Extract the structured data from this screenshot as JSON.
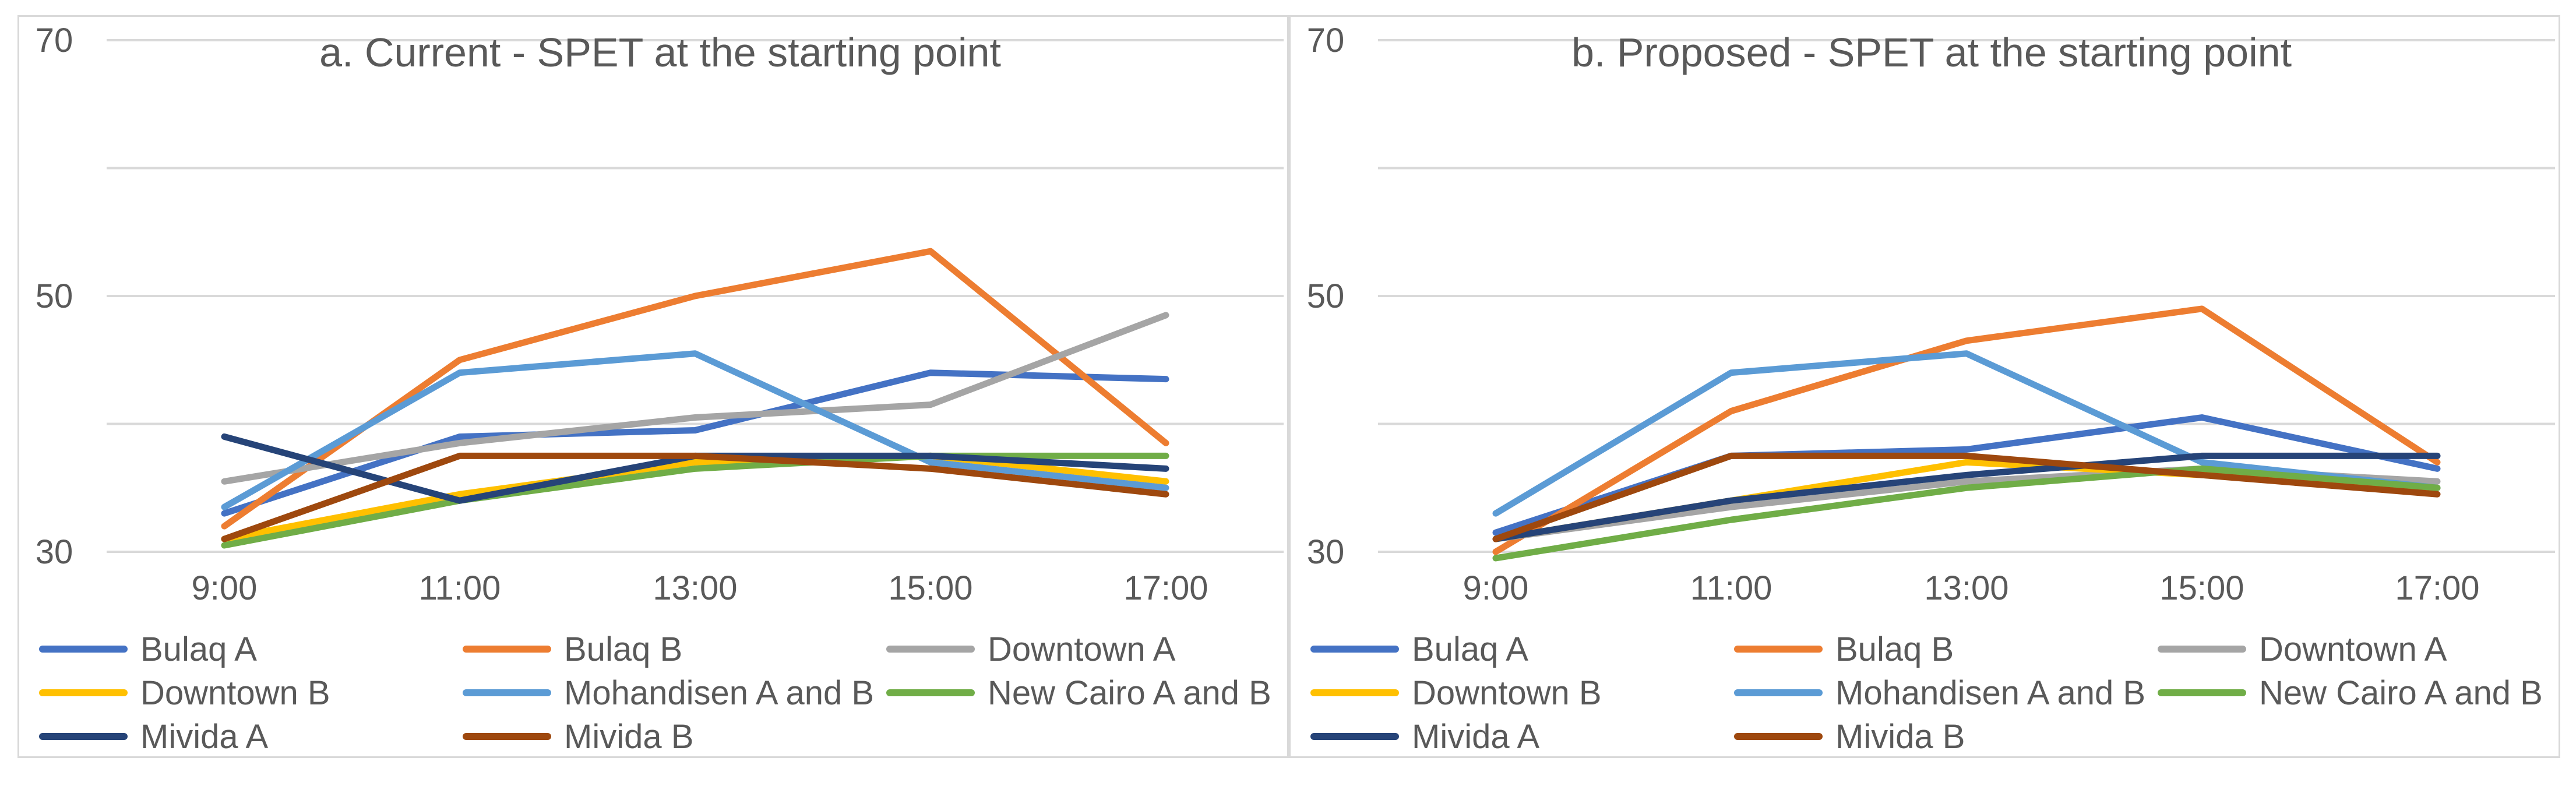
{
  "chart_data": [
    {
      "type": "line",
      "title": "a. Current - SPET at the starting point",
      "xlabel": "",
      "ylabel": "",
      "categories": [
        "9:00",
        "11:00",
        "13:00",
        "15:00",
        "17:00"
      ],
      "yticks": [
        30,
        50,
        70
      ],
      "ylim": [
        30,
        70
      ],
      "grid": true,
      "legend": "bottom",
      "series": [
        {
          "name": "Bulaq A",
          "color": "#4472c4",
          "values": [
            33,
            39,
            39.5,
            44,
            43.5
          ]
        },
        {
          "name": "Bulaq B",
          "color": "#ed7d31",
          "values": [
            32,
            45,
            50,
            53.5,
            38.5
          ]
        },
        {
          "name": "Downtown A",
          "color": "#a5a5a5",
          "values": [
            35.5,
            38.5,
            40.5,
            41.5,
            48.5
          ]
        },
        {
          "name": "Downtown B",
          "color": "#ffc000",
          "values": [
            31,
            34.5,
            37,
            37.5,
            35.5
          ]
        },
        {
          "name": "Mohandisen A and B",
          "color": "#5b9bd5",
          "values": [
            33.5,
            44,
            45.5,
            37,
            35
          ]
        },
        {
          "name": "New Cairo A and B",
          "color": "#70ad47",
          "values": [
            30.5,
            34,
            36.5,
            37.5,
            37.5
          ]
        },
        {
          "name": "Mivida A",
          "color": "#264478",
          "values": [
            39,
            34,
            37.5,
            37.5,
            36.5
          ]
        },
        {
          "name": "Mivida B",
          "color": "#9e480e",
          "values": [
            31,
            37.5,
            37.5,
            36.5,
            34.5
          ]
        }
      ]
    },
    {
      "type": "line",
      "title": "b. Proposed - SPET at the starting point",
      "xlabel": "",
      "ylabel": "",
      "categories": [
        "9:00",
        "11:00",
        "13:00",
        "15:00",
        "17:00"
      ],
      "yticks": [
        30,
        50,
        70
      ],
      "ylim": [
        30,
        70
      ],
      "grid": true,
      "legend": "bottom",
      "series": [
        {
          "name": "Bulaq A",
          "color": "#4472c4",
          "values": [
            31.5,
            37.5,
            38,
            40.5,
            36.5
          ]
        },
        {
          "name": "Bulaq B",
          "color": "#ed7d31",
          "values": [
            30,
            41,
            46.5,
            49,
            37
          ]
        },
        {
          "name": "Downtown A",
          "color": "#a5a5a5",
          "values": [
            31,
            33.5,
            35.5,
            36.5,
            35.5
          ]
        },
        {
          "name": "Downtown B",
          "color": "#ffc000",
          "values": [
            31,
            34,
            37,
            36,
            35
          ]
        },
        {
          "name": "Mohandisen A and B",
          "color": "#5b9bd5",
          "values": [
            33,
            44,
            45.5,
            37,
            35
          ]
        },
        {
          "name": "New Cairo A and B",
          "color": "#70ad47",
          "values": [
            29.5,
            32.5,
            35,
            36.5,
            35
          ]
        },
        {
          "name": "Mivida A",
          "color": "#264478",
          "values": [
            31,
            34,
            36,
            37.5,
            37.5
          ]
        },
        {
          "name": "Mivida B",
          "color": "#9e480e",
          "values": [
            31,
            37.5,
            37.5,
            36,
            34.5
          ]
        }
      ]
    }
  ]
}
